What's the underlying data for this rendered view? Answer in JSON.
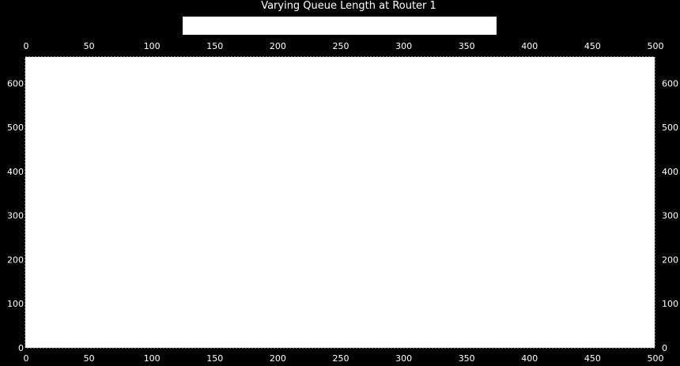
{
  "chart_data": {
    "type": "line",
    "title": "Varying Queue Length at Router 1",
    "xlabel": "",
    "ylabel": "",
    "xlim": [
      0,
      500
    ],
    "ylim": [
      0,
      660
    ],
    "x_ticks": [
      0,
      50,
      100,
      150,
      200,
      250,
      300,
      350,
      400,
      450,
      500
    ],
    "y_ticks": [
      0,
      100,
      200,
      300,
      400,
      500,
      600
    ],
    "x_tick_labels": [
      "0",
      "50",
      "100",
      "150",
      "200",
      "250",
      "300",
      "350",
      "400",
      "450",
      "500"
    ],
    "y_tick_labels": [
      "0",
      "100",
      "200",
      "300",
      "400",
      "500",
      "600"
    ],
    "axes_top": true,
    "axes_right": true,
    "grid": false,
    "legend": {
      "placement": "top-center",
      "entries": []
    },
    "series": [],
    "colors": {
      "background": "#000000",
      "plot_area": "#ffffff",
      "text": "#ffffff",
      "frame": "#cccccc"
    }
  }
}
